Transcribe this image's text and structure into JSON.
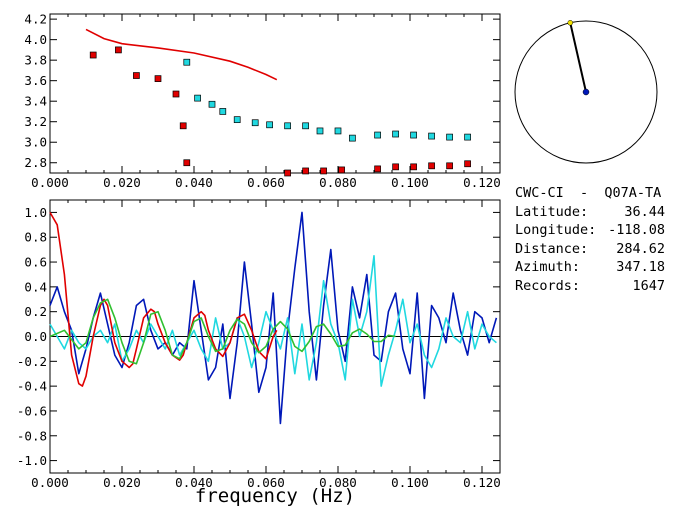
{
  "colors": {
    "red": "#e00000",
    "blue": "#0018b8",
    "cyan": "#20d8e0",
    "green": "#30c030",
    "yellow": "#f0e000",
    "axis": "#000000"
  },
  "info": {
    "station": "CWC-CI  -  Q07A-TA",
    "rows": [
      {
        "key": "Latitude:",
        "value": "36.44"
      },
      {
        "key": "Longitude:",
        "value": "-118.08"
      },
      {
        "key": "Distance:",
        "value": "284.62"
      },
      {
        "key": "Azimuth:",
        "value": "347.18"
      },
      {
        "key": "Records:",
        "value": "1647"
      }
    ]
  },
  "chart_data": [
    {
      "type": "scatter",
      "xlim": [
        0.0,
        0.125
      ],
      "ylim": [
        2.7,
        4.25
      ],
      "x_ticks": [
        "0.000",
        "0.020",
        "0.040",
        "0.060",
        "0.080",
        "0.100",
        "0.120"
      ],
      "y_ticks": [
        "2.8",
        "3.0",
        "3.2",
        "3.4",
        "3.6",
        "3.8",
        "4.0",
        "4.2"
      ],
      "series": [
        {
          "marker": "red-line",
          "color": "#e00000",
          "x": [
            0.01,
            0.015,
            0.02,
            0.03,
            0.04,
            0.05,
            0.055,
            0.06,
            0.063
          ],
          "y": [
            4.1,
            4.01,
            3.96,
            3.92,
            3.87,
            3.79,
            3.73,
            3.66,
            3.61
          ]
        },
        {
          "marker": "red-square",
          "color": "#e00000",
          "x": [
            0.012,
            0.019,
            0.024,
            0.03,
            0.035,
            0.037,
            0.038,
            0.066,
            0.071,
            0.076,
            0.081,
            0.091,
            0.096,
            0.101,
            0.106,
            0.111,
            0.116
          ],
          "y": [
            3.85,
            3.9,
            3.65,
            3.62,
            3.47,
            3.16,
            2.8,
            2.7,
            2.72,
            2.72,
            2.73,
            2.74,
            2.76,
            2.76,
            2.77,
            2.77,
            2.79
          ]
        },
        {
          "marker": "cyan-square",
          "color": "#20d8e0",
          "x": [
            0.038,
            0.041,
            0.045,
            0.048,
            0.052,
            0.057,
            0.061,
            0.066,
            0.071,
            0.075,
            0.08,
            0.084,
            0.091,
            0.096,
            0.101,
            0.106,
            0.111,
            0.116
          ],
          "y": [
            3.78,
            3.43,
            3.37,
            3.3,
            3.22,
            3.19,
            3.17,
            3.16,
            3.16,
            3.11,
            3.11,
            3.04,
            3.07,
            3.08,
            3.07,
            3.06,
            3.05,
            3.05
          ]
        }
      ]
    },
    {
      "type": "line",
      "xlabel": "frequency (Hz)",
      "xlim": [
        0.0,
        0.125
      ],
      "ylim": [
        -1.1,
        1.1
      ],
      "x_ticks": [
        "0.000",
        "0.020",
        "0.040",
        "0.060",
        "0.080",
        "0.100",
        "0.120"
      ],
      "y_ticks": [
        "1.0",
        "0.8",
        "0.6",
        "0.4",
        "0.2",
        "0.0",
        "-0.2",
        "-0.4",
        "-0.6",
        "-0.8",
        "-1.0"
      ],
      "series": [
        {
          "color": "#0018b8",
          "x": [
            0,
            0.002,
            0.004,
            0.006,
            0.008,
            0.01,
            0.012,
            0.014,
            0.016,
            0.018,
            0.02,
            0.022,
            0.024,
            0.026,
            0.028,
            0.03,
            0.032,
            0.034,
            0.036,
            0.038,
            0.04,
            0.042,
            0.044,
            0.046,
            0.048,
            0.05,
            0.052,
            0.054,
            0.056,
            0.058,
            0.06,
            0.062,
            0.064,
            0.066,
            0.068,
            0.07,
            0.072,
            0.074,
            0.076,
            0.078,
            0.08,
            0.082,
            0.084,
            0.086,
            0.088,
            0.09,
            0.092,
            0.094,
            0.096,
            0.098,
            0.1,
            0.102,
            0.104,
            0.106,
            0.108,
            0.11,
            0.112,
            0.114,
            0.116,
            0.118,
            0.12,
            0.122,
            0.124
          ],
          "y": [
            0.25,
            0.4,
            0.2,
            0.05,
            -0.3,
            -0.1,
            0.15,
            0.35,
            0.1,
            -0.15,
            -0.25,
            -0.05,
            0.25,
            0.3,
            0.05,
            -0.1,
            -0.05,
            -0.15,
            -0.05,
            -0.1,
            0.45,
            0.05,
            -0.35,
            -0.25,
            0.1,
            -0.5,
            -0.05,
            0.6,
            0.1,
            -0.45,
            -0.25,
            0.35,
            -0.7,
            0.05,
            0.55,
            1.0,
            0.2,
            -0.35,
            0.25,
            0.7,
            0.05,
            -0.2,
            0.4,
            0.15,
            0.5,
            -0.15,
            -0.2,
            0.2,
            0.35,
            -0.1,
            -0.3,
            0.35,
            -0.5,
            0.25,
            0.15,
            -0.05,
            0.35,
            0.05,
            -0.15,
            0.2,
            0.15,
            -0.05,
            0.15
          ]
        },
        {
          "color": "#20d8e0",
          "x": [
            0,
            0.002,
            0.004,
            0.006,
            0.008,
            0.01,
            0.012,
            0.014,
            0.016,
            0.018,
            0.02,
            0.022,
            0.024,
            0.026,
            0.028,
            0.03,
            0.032,
            0.034,
            0.036,
            0.038,
            0.04,
            0.042,
            0.044,
            0.046,
            0.048,
            0.05,
            0.052,
            0.054,
            0.056,
            0.058,
            0.06,
            0.062,
            0.064,
            0.066,
            0.068,
            0.07,
            0.072,
            0.074,
            0.076,
            0.078,
            0.08,
            0.082,
            0.084,
            0.086,
            0.088,
            0.09,
            0.092,
            0.094,
            0.096,
            0.098,
            0.1,
            0.102,
            0.104,
            0.106,
            0.108,
            0.11,
            0.112,
            0.114,
            0.116,
            0.118,
            0.12,
            0.122,
            0.124
          ],
          "y": [
            0.1,
            0.0,
            -0.1,
            0.05,
            -0.05,
            -0.1,
            0.0,
            0.05,
            -0.05,
            0.1,
            -0.2,
            -0.1,
            0.05,
            -0.05,
            0.1,
            0.0,
            -0.1,
            0.05,
            -0.15,
            -0.05,
            0.05,
            -0.1,
            -0.2,
            0.15,
            -0.1,
            -0.05,
            0.15,
            0.0,
            -0.25,
            -0.05,
            0.2,
            0.05,
            -0.1,
            0.15,
            -0.3,
            0.1,
            -0.35,
            -0.05,
            0.45,
            0.1,
            -0.05,
            -0.35,
            0.3,
            0.0,
            0.2,
            0.65,
            -0.4,
            -0.15,
            0.05,
            0.3,
            -0.05,
            0.1,
            -0.15,
            -0.25,
            -0.1,
            0.15,
            0.0,
            -0.05,
            0.2,
            -0.1,
            0.1,
            0.0,
            -0.05
          ]
        },
        {
          "color": "#e00000",
          "x": [
            0,
            0.002,
            0.004,
            0.006,
            0.008,
            0.009,
            0.01,
            0.012,
            0.014,
            0.015,
            0.016,
            0.018,
            0.02,
            0.022,
            0.023,
            0.024,
            0.026,
            0.028,
            0.029,
            0.03,
            0.032,
            0.034,
            0.036,
            0.037,
            0.038,
            0.04,
            0.042,
            0.043,
            0.044,
            0.046,
            0.048,
            0.05,
            0.052,
            0.054,
            0.056,
            0.058,
            0.06,
            0.062,
            0.063
          ],
          "y": [
            1.0,
            0.9,
            0.5,
            -0.15,
            -0.38,
            -0.4,
            -0.32,
            0.0,
            0.25,
            0.3,
            0.25,
            -0.05,
            -0.2,
            -0.25,
            -0.22,
            -0.1,
            0.15,
            0.22,
            0.2,
            0.1,
            -0.05,
            -0.15,
            -0.19,
            -0.15,
            -0.05,
            0.15,
            0.2,
            0.17,
            0.05,
            -0.1,
            -0.16,
            -0.05,
            0.15,
            0.18,
            0.05,
            -0.12,
            -0.18,
            0.0,
            0.05
          ]
        },
        {
          "color": "#30c030",
          "x": [
            0,
            0.004,
            0.008,
            0.01,
            0.012,
            0.014,
            0.016,
            0.018,
            0.02,
            0.022,
            0.024,
            0.026,
            0.028,
            0.03,
            0.032,
            0.034,
            0.036,
            0.038,
            0.04,
            0.042,
            0.044,
            0.046,
            0.048,
            0.05,
            0.052,
            0.054,
            0.056,
            0.058,
            0.06,
            0.062,
            0.064,
            0.066,
            0.068,
            0.07,
            0.072,
            0.074,
            0.076,
            0.078,
            0.08,
            0.082,
            0.084,
            0.086,
            0.088,
            0.09,
            0.092,
            0.094,
            0.096
          ],
          "y": [
            0.0,
            0.05,
            -0.1,
            -0.05,
            0.15,
            0.27,
            0.3,
            0.15,
            -0.05,
            -0.2,
            -0.22,
            -0.05,
            0.18,
            0.2,
            0.05,
            -0.15,
            -0.18,
            -0.05,
            0.12,
            0.15,
            0.0,
            -0.12,
            -0.1,
            0.05,
            0.14,
            0.1,
            -0.05,
            -0.13,
            -0.08,
            0.06,
            0.12,
            0.06,
            -0.08,
            -0.12,
            -0.04,
            0.08,
            0.1,
            0.02,
            -0.08,
            -0.07,
            0.03,
            0.06,
            0.02,
            -0.04,
            -0.04,
            0.01,
            0.0
          ]
        }
      ]
    }
  ]
}
